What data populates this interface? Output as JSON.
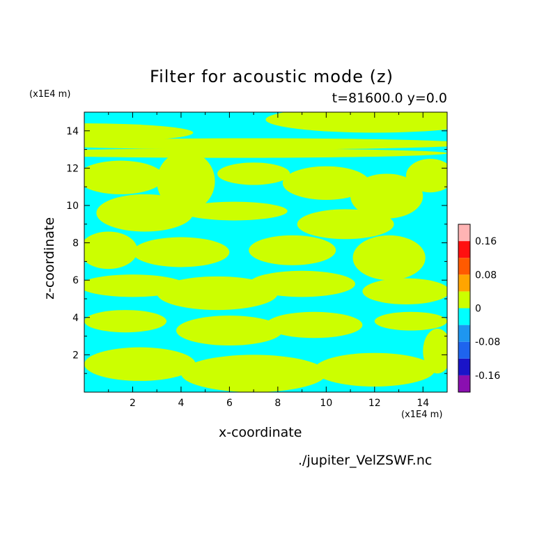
{
  "title": "Filter for acoustic mode (z)",
  "subtitle": "t=81600.0 y=0.0",
  "footer": "./jupiter_VelZSWF.nc",
  "chart_data": {
    "type": "heatmap",
    "title": "Filter for acoustic mode (z)",
    "xlabel": "x-coordinate",
    "ylabel": "z-coordinate",
    "x_unit_label": "(x1E4 m)",
    "y_unit_label": "(x1E4 m)",
    "xlim": [
      0,
      15
    ],
    "ylim": [
      0,
      15
    ],
    "xticks": [
      2,
      4,
      6,
      8,
      10,
      12,
      14
    ],
    "yticks": [
      2,
      4,
      6,
      8,
      10,
      12,
      14
    ],
    "grid": false,
    "legend": "colorbar-right",
    "colorbar": {
      "levels": [
        -0.2,
        -0.16,
        -0.12,
        -0.08,
        -0.04,
        0,
        0.04,
        0.08,
        0.12,
        0.16,
        0.2
      ],
      "colors": [
        "#8a0fb0",
        "#1a14c8",
        "#1e64ee",
        "#1e96f0",
        "#00ffff",
        "#ccff00",
        "#ffa500",
        "#ff5a00",
        "#ff1010",
        "#ffb4b4"
      ],
      "tick_values": [
        0.16,
        0.08,
        0,
        -0.08,
        -0.16
      ],
      "tick_labels": [
        "0.16",
        "0.08",
        "0",
        "-0.08",
        "-0.16"
      ]
    },
    "field": {
      "description_values": "field values fluctuate between about -0.04 and 0.04 across the domain",
      "negative_color": "#00ffff",
      "positive_color": "#ccff00",
      "patches": [
        {
          "x": 0.0,
          "z": 13.9,
          "rx": 4.5,
          "ry": 0.5,
          "v": 1
        },
        {
          "x": 12.0,
          "z": 14.6,
          "rx": 4.5,
          "ry": 0.7,
          "v": 1
        },
        {
          "x": 7.0,
          "z": 13.3,
          "rx": 9.0,
          "ry": 0.3,
          "v": 1
        },
        {
          "x": 6.0,
          "z": 12.8,
          "rx": 9.0,
          "ry": 0.25,
          "v": 1
        },
        {
          "x": 1.5,
          "z": 11.5,
          "rx": 1.8,
          "ry": 0.9,
          "v": 1
        },
        {
          "x": 4.2,
          "z": 11.3,
          "rx": 1.2,
          "ry": 1.6,
          "v": 1
        },
        {
          "x": 7.0,
          "z": 11.7,
          "rx": 1.5,
          "ry": 0.6,
          "v": 1
        },
        {
          "x": 10.0,
          "z": 11.2,
          "rx": 1.8,
          "ry": 0.9,
          "v": 1
        },
        {
          "x": 12.5,
          "z": 10.5,
          "rx": 1.5,
          "ry": 1.2,
          "v": 1
        },
        {
          "x": 14.3,
          "z": 11.6,
          "rx": 1.0,
          "ry": 0.9,
          "v": 1
        },
        {
          "x": 2.5,
          "z": 9.6,
          "rx": 2.0,
          "ry": 1.0,
          "v": 1
        },
        {
          "x": 6.2,
          "z": 9.7,
          "rx": 2.2,
          "ry": 0.5,
          "v": 1
        },
        {
          "x": 10.8,
          "z": 9.0,
          "rx": 2.0,
          "ry": 0.8,
          "v": 1
        },
        {
          "x": 1.0,
          "z": 7.6,
          "rx": 1.2,
          "ry": 1.0,
          "v": 1
        },
        {
          "x": 4.0,
          "z": 7.5,
          "rx": 2.0,
          "ry": 0.8,
          "v": 1
        },
        {
          "x": 8.6,
          "z": 7.6,
          "rx": 1.8,
          "ry": 0.8,
          "v": 1
        },
        {
          "x": 12.6,
          "z": 7.2,
          "rx": 1.5,
          "ry": 1.2,
          "v": 1
        },
        {
          "x": 2.0,
          "z": 5.7,
          "rx": 2.2,
          "ry": 0.6,
          "v": 1
        },
        {
          "x": 5.5,
          "z": 5.3,
          "rx": 2.5,
          "ry": 0.9,
          "v": 1
        },
        {
          "x": 9.0,
          "z": 5.8,
          "rx": 2.2,
          "ry": 0.7,
          "v": 1
        },
        {
          "x": 13.3,
          "z": 5.4,
          "rx": 1.8,
          "ry": 0.7,
          "v": 1
        },
        {
          "x": 1.7,
          "z": 3.8,
          "rx": 1.7,
          "ry": 0.6,
          "v": 1
        },
        {
          "x": 6.0,
          "z": 3.3,
          "rx": 2.2,
          "ry": 0.8,
          "v": 1
        },
        {
          "x": 9.5,
          "z": 3.6,
          "rx": 2.0,
          "ry": 0.7,
          "v": 1
        },
        {
          "x": 13.5,
          "z": 3.8,
          "rx": 1.5,
          "ry": 0.5,
          "v": 1
        },
        {
          "x": 2.3,
          "z": 1.5,
          "rx": 2.3,
          "ry": 0.9,
          "v": 1
        },
        {
          "x": 7.0,
          "z": 1.0,
          "rx": 3.0,
          "ry": 1.0,
          "v": 1
        },
        {
          "x": 12.0,
          "z": 1.2,
          "rx": 2.5,
          "ry": 0.9,
          "v": 1
        },
        {
          "x": 14.6,
          "z": 2.2,
          "rx": 0.6,
          "ry": 1.2,
          "v": 1
        }
      ]
    }
  }
}
